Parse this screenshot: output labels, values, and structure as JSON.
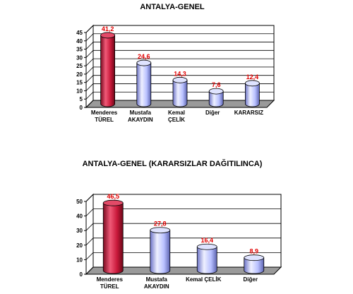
{
  "colors": {
    "highlight": "#c8183a",
    "normal": "#b8c0ff",
    "label": "#e00000",
    "grid": "#000000"
  },
  "chart_data": [
    {
      "type": "bar",
      "title": "ANTALYA-GENEL",
      "categories": [
        [
          "Menderes",
          "TÜREL"
        ],
        [
          "Mustafa",
          "AKAYDIN"
        ],
        [
          "Kemal",
          "ÇELİK"
        ],
        [
          "Diğer"
        ],
        [
          "KARARSIZ"
        ]
      ],
      "values": [
        41.2,
        24.6,
        14.3,
        7.6,
        12.4
      ],
      "value_labels": [
        "41,2",
        "24,6",
        "14,3",
        "7,6",
        "12,4"
      ],
      "yticks": [
        "0",
        "5",
        "10",
        "15",
        "20",
        "25",
        "30",
        "35",
        "40",
        "45"
      ],
      "ylim": [
        0,
        45
      ],
      "grid": true,
      "highlight_index": 0
    },
    {
      "type": "bar",
      "title": "ANTALYA-GENEL (KARARSIZLAR DAĞITILINCA)",
      "categories": [
        [
          "Menderes",
          "TÜREL"
        ],
        [
          "Mustafa",
          "AKAYDIN"
        ],
        [
          "Kemal ÇELİK"
        ],
        [
          "Diğer"
        ]
      ],
      "values": [
        46.5,
        27.8,
        16.4,
        8.9
      ],
      "value_labels": [
        "46,5",
        "27,8",
        "16,4",
        "8,9"
      ],
      "yticks": [
        "0",
        "10",
        "20",
        "30",
        "40",
        "50"
      ],
      "ylim": [
        0,
        50
      ],
      "grid": true,
      "highlight_index": 0
    }
  ]
}
